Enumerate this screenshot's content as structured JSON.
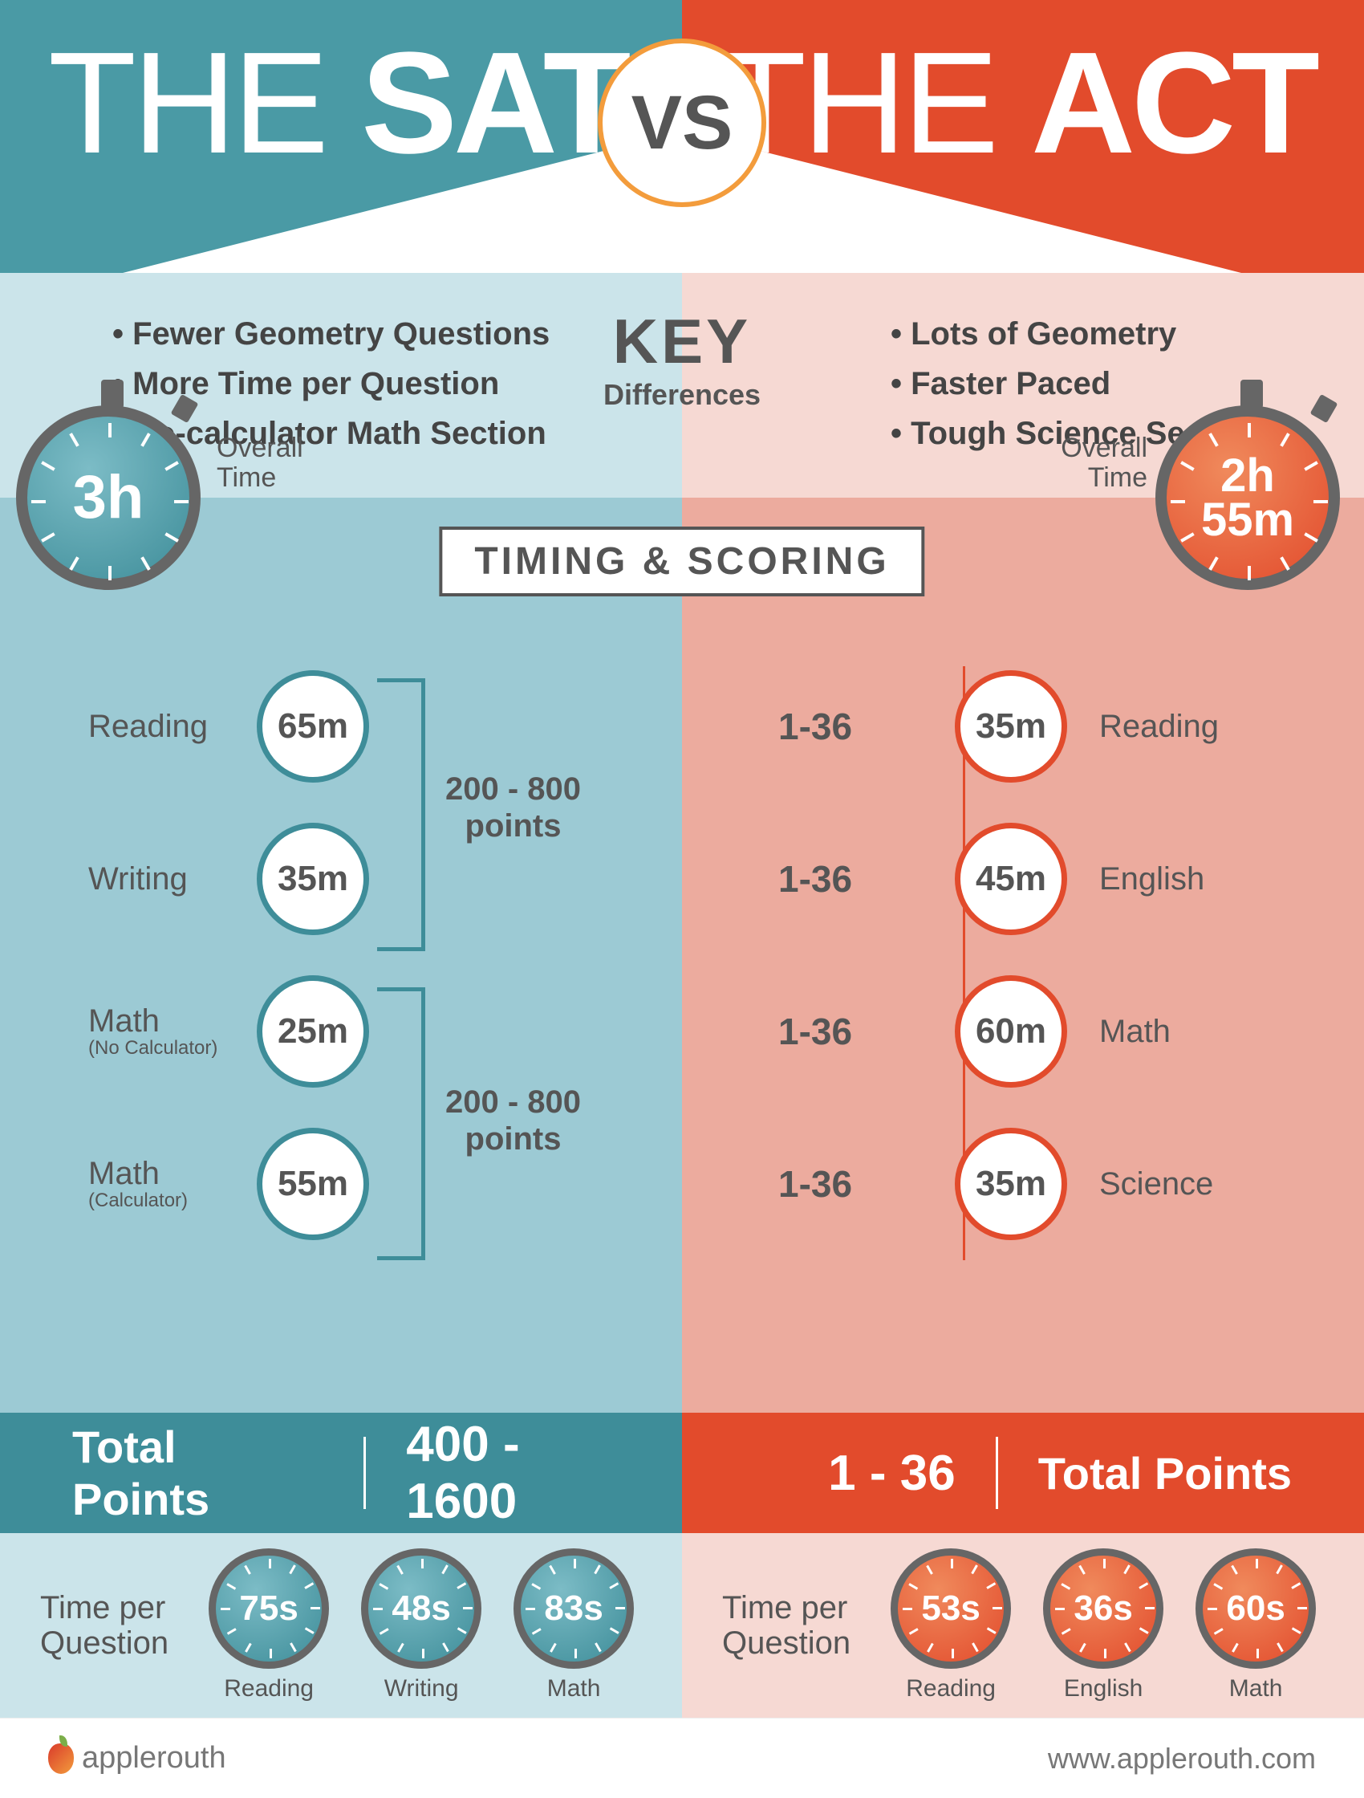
{
  "colors": {
    "teal": "#4a9aa5",
    "teal_dark": "#3e8d99",
    "teal_light": "#9ccad4",
    "teal_pale": "#cbe4ea",
    "orange": "#e24b2c",
    "orange_light": "#ecab9e",
    "orange_pale": "#f6d9d3",
    "accent_ring": "#f39c3c",
    "text": "#555555"
  },
  "header": {
    "left_prefix": "THE ",
    "left_bold": "SAT",
    "right_prefix": "THE ",
    "right_bold": "ACT",
    "vs": "VS"
  },
  "key": {
    "title_top": "KEY",
    "title_bottom": "Differences",
    "sat": [
      "Fewer Geometry Questions",
      "More Time per Question",
      "No-calculator Math Section"
    ],
    "act": [
      "Lots of Geometry",
      "Faster Paced",
      "Tough Science Section"
    ]
  },
  "timing": {
    "section_title": "TIMING & SCORING",
    "overall_label": "Overall\nTime",
    "sat": {
      "overall": "3h",
      "sections": [
        {
          "label": "Reading",
          "sub": "",
          "time": "65m"
        },
        {
          "label": "Writing",
          "sub": "",
          "time": "35m"
        },
        {
          "label": "Math",
          "sub": "(No Calculator)",
          "time": "25m"
        },
        {
          "label": "Math",
          "sub": "(Calculator)",
          "time": "55m"
        }
      ],
      "group_label": "200 - 800\npoints"
    },
    "act": {
      "overall_l1": "2h",
      "overall_l2": "55m",
      "sections": [
        {
          "label": "Reading",
          "time": "35m",
          "score": "1-36"
        },
        {
          "label": "English",
          "time": "45m",
          "score": "1-36"
        },
        {
          "label": "Math",
          "time": "60m",
          "score": "1-36"
        },
        {
          "label": "Science",
          "time": "35m",
          "score": "1-36"
        }
      ]
    }
  },
  "totals": {
    "label": "Total Points",
    "sat": "400 - 1600",
    "act": "1 - 36"
  },
  "tpq": {
    "label": "Time per\nQuestion",
    "sat": [
      {
        "val": "75s",
        "label": "Reading"
      },
      {
        "val": "48s",
        "label": "Writing"
      },
      {
        "val": "83s",
        "label": "Math"
      }
    ],
    "act": [
      {
        "val": "53s",
        "label": "Reading"
      },
      {
        "val": "36s",
        "label": "English"
      },
      {
        "val": "60s",
        "label": "Math"
      }
    ]
  },
  "footer": {
    "brand": "applerouth",
    "url": "www.applerouth.com"
  }
}
